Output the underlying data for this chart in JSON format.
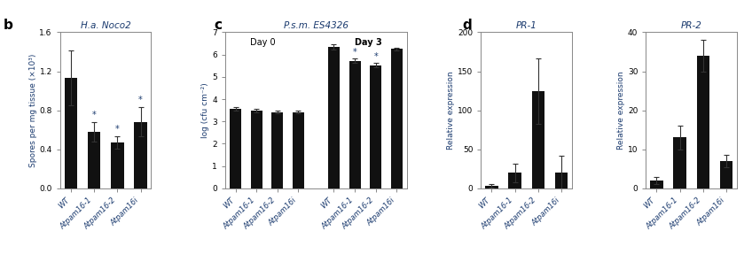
{
  "panel_b": {
    "title": "H.a. Noco2",
    "ylabel": "Spores per mg tissue (×10³)",
    "categories": [
      "WT",
      "Atpam16-1",
      "Atpam16-2",
      "Atpam16i"
    ],
    "values": [
      1.13,
      0.58,
      0.47,
      0.68
    ],
    "errors": [
      0.28,
      0.1,
      0.06,
      0.15
    ],
    "ylim": [
      0,
      1.6
    ],
    "yticks": [
      0,
      0.4,
      0.8,
      1.2,
      1.6
    ],
    "star": [
      false,
      true,
      true,
      true
    ],
    "bar_color": "#111111"
  },
  "panel_c": {
    "title": "P.s.m. ES4326",
    "ylabel": "log (cfu cm⁻²)",
    "categories_day0": [
      "WT",
      "Atpam16-1",
      "Atpam16-2",
      "Atpam16i"
    ],
    "categories_day3": [
      "WT",
      "Atpam16-1",
      "Atpam16-2",
      "Atpam16i"
    ],
    "values_day0": [
      3.55,
      3.5,
      3.42,
      3.42
    ],
    "errors_day0": [
      0.08,
      0.08,
      0.05,
      0.05
    ],
    "values_day3": [
      6.35,
      5.72,
      5.52,
      6.25
    ],
    "errors_day3": [
      0.12,
      0.1,
      0.1,
      0.07
    ],
    "star_day3": [
      false,
      true,
      true,
      false
    ],
    "ylim": [
      0,
      7
    ],
    "yticks": [
      0,
      1,
      2,
      3,
      4,
      5,
      6,
      7
    ],
    "bar_color": "#111111",
    "day0_label": "Day 0",
    "day3_label": "Day 3"
  },
  "panel_d1": {
    "title": "PR-1",
    "ylabel": "Relative expression",
    "categories": [
      "WT",
      "Atpam16-1",
      "Atpam16-2",
      "Atpam16i"
    ],
    "values": [
      3,
      20,
      125,
      20
    ],
    "errors": [
      2,
      12,
      42,
      22
    ],
    "ylim": [
      0,
      200
    ],
    "yticks": [
      0,
      50,
      100,
      150,
      200
    ],
    "bar_color": "#111111"
  },
  "panel_d2": {
    "title": "PR-2",
    "ylabel": "Relative expression",
    "categories": [
      "WT",
      "Atpam16-1",
      "Atpam16-2",
      "Atpam16i"
    ],
    "values": [
      2,
      13,
      34,
      7
    ],
    "errors": [
      1,
      3,
      4,
      1.5
    ],
    "ylim": [
      0,
      40
    ],
    "yticks": [
      0,
      10,
      20,
      30,
      40
    ],
    "bar_color": "#111111"
  },
  "tick_label_color": "#1a3a6e",
  "ylabel_color": "#1a3a6e",
  "star_color": "#1a3a6e",
  "title_color": "#1a3a6e",
  "panel_label_color": "#000000",
  "bg_color": "#ffffff"
}
